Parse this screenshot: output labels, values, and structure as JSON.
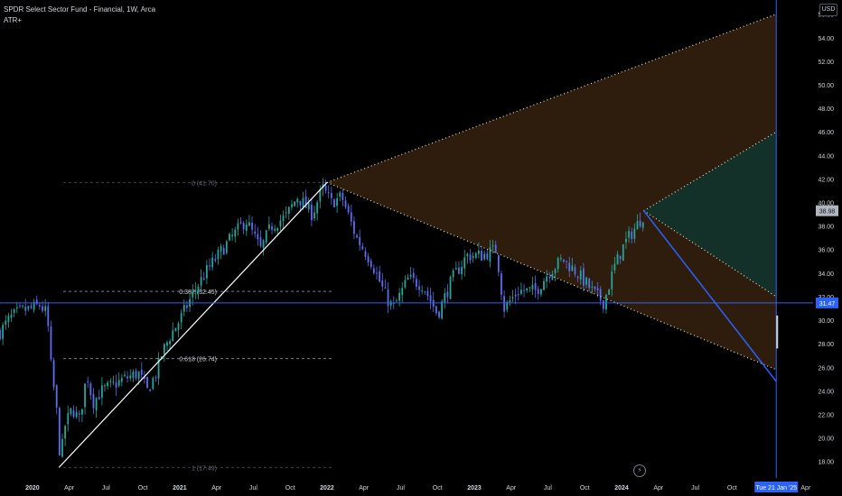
{
  "legend": {
    "title": "SPDR Select Sector Fund - Financial, 1W, Arca",
    "indicator": "ATR+"
  },
  "currency": "USD",
  "colors": {
    "background": "#000000",
    "candle_up": "#26a69a",
    "candle_down": "#5b6df0",
    "trend_line": "#ffffff",
    "price_line": "#2962ff",
    "projection_line": "#2962ff",
    "fib_line": "#787b86",
    "channel_fill": "#3d2710",
    "green_fill": "#12332a",
    "axis_text": "#d1d4dc",
    "last_price_bg": "#2962ff",
    "hover_label_bg": "#b2b5be"
  },
  "chart_data": {
    "type": "candlestick",
    "x_axis": {
      "labels": [
        {
          "t": 0.0,
          "label": "2020"
        },
        {
          "t": 0.25,
          "label": "Apr"
        },
        {
          "t": 0.5,
          "label": "Jul"
        },
        {
          "t": 0.75,
          "label": "Oct"
        },
        {
          "t": 1.0,
          "label": "2021"
        },
        {
          "t": 1.25,
          "label": "Apr"
        },
        {
          "t": 1.5,
          "label": "Jul"
        },
        {
          "t": 1.75,
          "label": "Oct"
        },
        {
          "t": 2.0,
          "label": "2022"
        },
        {
          "t": 2.25,
          "label": "Apr"
        },
        {
          "t": 2.5,
          "label": "Jul"
        },
        {
          "t": 2.75,
          "label": "Oct"
        },
        {
          "t": 3.0,
          "label": "2023"
        },
        {
          "t": 3.25,
          "label": "Apr"
        },
        {
          "t": 3.5,
          "label": "Jul"
        },
        {
          "t": 3.75,
          "label": "Oct"
        },
        {
          "t": 4.0,
          "label": "2024"
        },
        {
          "t": 4.25,
          "label": "Apr"
        },
        {
          "t": 4.5,
          "label": "Jul"
        },
        {
          "t": 4.75,
          "label": "Oct"
        },
        {
          "t": 5.25,
          "label": "Apr"
        }
      ],
      "range_years_from_2020": [
        -0.22,
        5.3
      ]
    },
    "y_axis": {
      "ticks": [
        18,
        20,
        22,
        24,
        26,
        28,
        30,
        32,
        34,
        36,
        38,
        40,
        42,
        44,
        46,
        48,
        50,
        52,
        54,
        56
      ],
      "tick_labels": [
        "18.00",
        "20.00",
        "22.00",
        "24.00",
        "26.00",
        "28.00",
        "30.00",
        "32.00",
        "34.00",
        "36.00",
        "38.00",
        "40.00",
        "42.00",
        "44.00",
        "46.00",
        "48.00",
        "50.00",
        "52.00",
        "54.00",
        "56.00"
      ],
      "range": [
        16.6,
        57.2
      ]
    },
    "close_path": [
      [
        -0.22,
        29.0
      ],
      [
        -0.15,
        30.2
      ],
      [
        -0.08,
        30.8
      ],
      [
        0.0,
        31.0
      ],
      [
        0.05,
        31.3
      ],
      [
        0.1,
        30.5
      ],
      [
        0.13,
        25.5
      ],
      [
        0.16,
        23.0
      ],
      [
        0.19,
        18.0
      ],
      [
        0.22,
        21.0
      ],
      [
        0.27,
        22.5
      ],
      [
        0.32,
        21.5
      ],
      [
        0.37,
        25.5
      ],
      [
        0.41,
        23.0
      ],
      [
        0.47,
        24.0
      ],
      [
        0.55,
        24.5
      ],
      [
        0.62,
        25.0
      ],
      [
        0.72,
        25.5
      ],
      [
        0.78,
        24.0
      ],
      [
        0.84,
        25.5
      ],
      [
        0.88,
        27.2
      ],
      [
        0.94,
        28.8
      ],
      [
        1.0,
        30.0
      ],
      [
        1.1,
        32.5
      ],
      [
        1.2,
        34.5
      ],
      [
        1.35,
        37.0
      ],
      [
        1.45,
        38.5
      ],
      [
        1.55,
        36.0
      ],
      [
        1.62,
        38.0
      ],
      [
        1.72,
        38.8
      ],
      [
        1.8,
        40.5
      ],
      [
        1.9,
        39.0
      ],
      [
        1.97,
        41.2
      ],
      [
        2.03,
        40.0
      ],
      [
        2.1,
        40.5
      ],
      [
        2.2,
        37.0
      ],
      [
        2.3,
        35.0
      ],
      [
        2.4,
        32.0
      ],
      [
        2.45,
        31.0
      ],
      [
        2.55,
        33.5
      ],
      [
        2.65,
        33.0
      ],
      [
        2.75,
        30.5
      ],
      [
        2.85,
        33.5
      ],
      [
        2.95,
        35.5
      ],
      [
        3.05,
        35.5
      ],
      [
        3.15,
        36.0
      ],
      [
        3.2,
        31.0
      ],
      [
        3.3,
        32.5
      ],
      [
        3.42,
        32.5
      ],
      [
        3.5,
        34.0
      ],
      [
        3.6,
        35.2
      ],
      [
        3.7,
        34.0
      ],
      [
        3.82,
        32.2
      ],
      [
        3.88,
        31.5
      ],
      [
        3.95,
        34.5
      ],
      [
        4.02,
        36.5
      ],
      [
        4.1,
        38.0
      ],
      [
        4.15,
        39.0
      ]
    ],
    "hover_price": "38.98",
    "last_price": 31.47,
    "last_price_label": "31.47",
    "date_label": "Tue 21 Jan '25",
    "hover_date_t": 5.05,
    "fib_retracement": {
      "start": {
        "t": 0.18,
        "price": 17.49
      },
      "end": {
        "t": 2.0,
        "price": 41.7
      },
      "levels": [
        {
          "ratio": 0,
          "price": 41.7,
          "label": "0 (41.70)"
        },
        {
          "ratio": 0.382,
          "price": 32.45,
          "label": "0.382 (32.45)"
        },
        {
          "ratio": 0.618,
          "price": 26.74,
          "label": "0.618 (26.74)"
        },
        {
          "ratio": 1,
          "price": 17.49,
          "label": "1 (17.49)"
        }
      ]
    },
    "channel": {
      "apex": {
        "t": 2.0,
        "price": 41.7
      },
      "upper_end": {
        "t": 5.05,
        "price": 56.0
      },
      "lower_end": {
        "t": 5.05,
        "price": 25.8
      }
    },
    "green_zone": {
      "apex": {
        "t": 4.15,
        "price": 39.3
      },
      "upper_end": {
        "t": 5.05,
        "price": 46.0
      },
      "lower_end": {
        "t": 5.05,
        "price": 32.0
      }
    },
    "projection": {
      "from": {
        "t": 4.15,
        "price": 39.3
      },
      "to": {
        "t": 5.05,
        "price": 24.8
      }
    }
  }
}
